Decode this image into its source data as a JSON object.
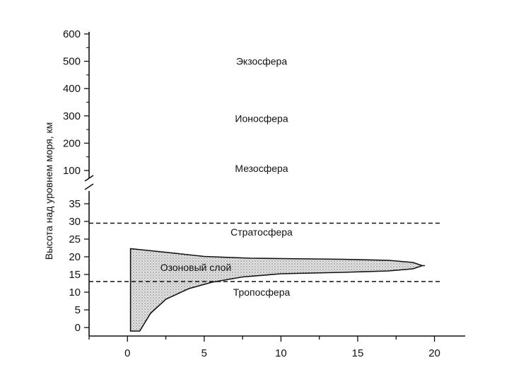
{
  "chart_data": {
    "type": "area",
    "title": "",
    "xlabel": "",
    "ylabel": "Высота над уровнем моря, км",
    "xlim": [
      -2.5,
      22
    ],
    "x_ticks": [
      "0",
      "5",
      "10",
      "15",
      "20"
    ],
    "y_ticks_upper": [
      "600",
      "500",
      "400",
      "300",
      "200",
      "100"
    ],
    "y_ticks_lower": [
      "35",
      "30",
      "25",
      "20",
      "15",
      "10",
      "5",
      "0"
    ],
    "y_axis_break": "between 100 and 35 km",
    "grid": false,
    "legend": "none",
    "layers": [
      {
        "name": "Экзосфера",
        "altitude_km": 500
      },
      {
        "name": "Ионосфера",
        "altitude_km": 290
      },
      {
        "name": "Мезосфера",
        "altitude_km": 45
      },
      {
        "name": "Стратосфера",
        "altitude_km": 27
      },
      {
        "name": "Тропосфера",
        "altitude_km": 10
      }
    ],
    "boundaries_km": [
      29.5,
      13
    ],
    "ozone_layer": {
      "label": "Озоновый слой",
      "upper_edge": {
        "x": [
          0.2,
          2,
          5,
          8,
          10,
          14,
          17,
          18.6,
          19.2
        ],
        "y": [
          22.3,
          21.5,
          20.1,
          19.6,
          19.5,
          19.3,
          19.0,
          18.4,
          17.5
        ]
      },
      "lower_edge": {
        "x": [
          0.8,
          1.5,
          2.5,
          4,
          5.5,
          7.5,
          10,
          14,
          17,
          18.6,
          19.2
        ],
        "y": [
          -1,
          4,
          8,
          11,
          12.8,
          14.3,
          15.2,
          15.6,
          16.0,
          16.6,
          17.5
        ]
      }
    }
  }
}
